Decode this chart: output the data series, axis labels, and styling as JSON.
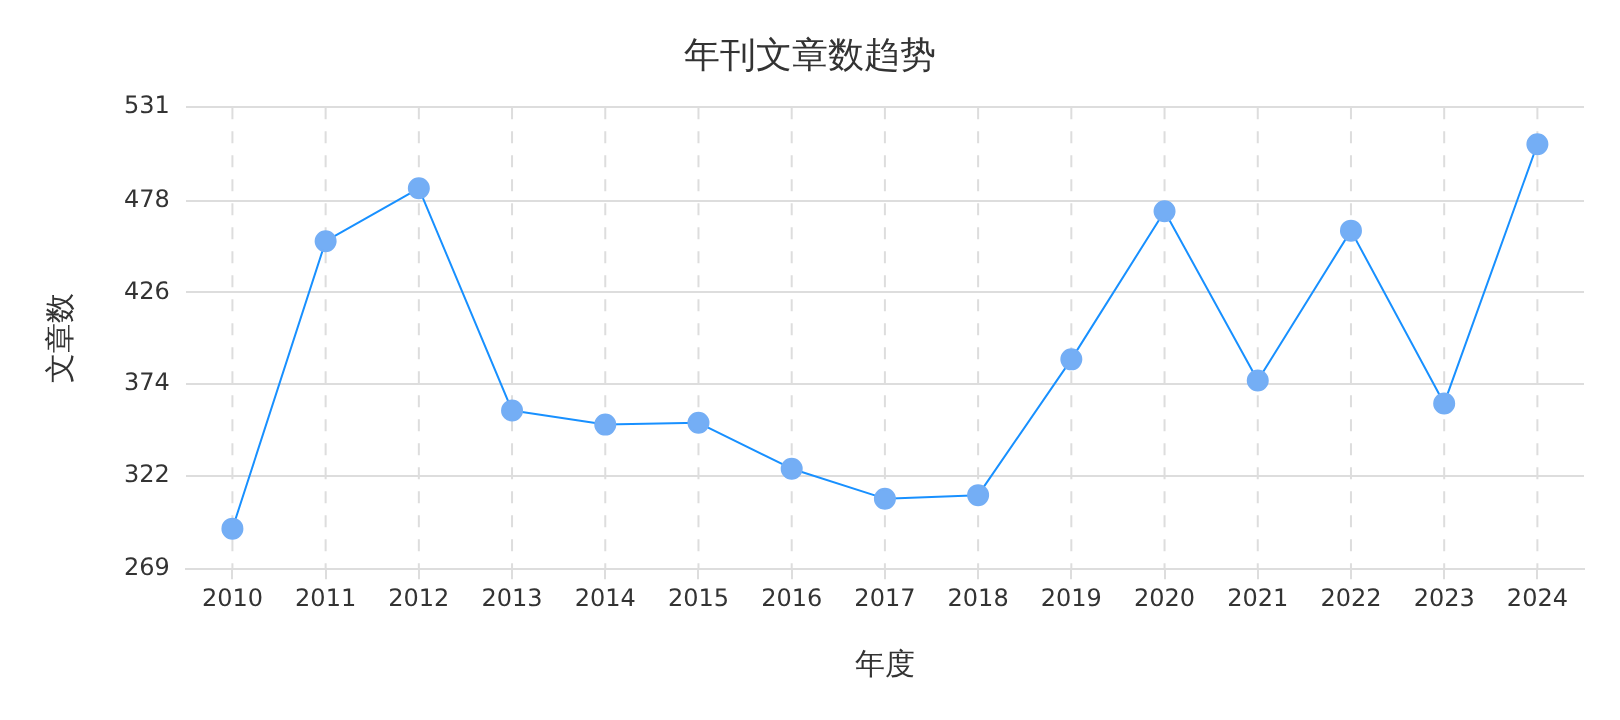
{
  "chart_data": {
    "type": "line",
    "title": "年刊文章数趋势",
    "xlabel": "年度",
    "ylabel": "文章数",
    "categories": [
      "2010",
      "2011",
      "2012",
      "2013",
      "2014",
      "2015",
      "2016",
      "2017",
      "2018",
      "2019",
      "2020",
      "2021",
      "2022",
      "2023",
      "2024"
    ],
    "series": [
      {
        "color": "#1890ff",
        "values": [
          292,
          455,
          485,
          359,
          351,
          352,
          326,
          309,
          311,
          388,
          472,
          376,
          461,
          363,
          510
        ]
      }
    ],
    "ylim": [
      269,
      531
    ],
    "yticks": [
      269,
      322,
      374,
      426,
      478,
      531
    ],
    "grid": true,
    "marker": "circle",
    "line_style": "solid",
    "legend": false
  }
}
